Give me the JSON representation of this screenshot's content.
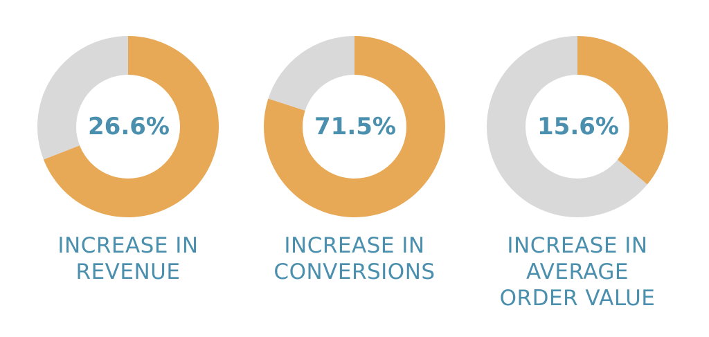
{
  "colors": {
    "accent": "#E8A957",
    "track": "#D9D9D9",
    "text": "#4A8FAE",
    "background": "#FFFFFF"
  },
  "chart_data": [
    {
      "type": "pie",
      "center_label": "26.6%",
      "values": [
        0.691,
        0.309
      ],
      "colors": [
        "#E8A957",
        "#D9D9D9"
      ],
      "caption_lines": [
        "INCREASE IN",
        "REVENUE"
      ]
    },
    {
      "type": "pie",
      "center_label": "71.5%",
      "values": [
        0.8,
        0.2
      ],
      "colors": [
        "#E8A957",
        "#D9D9D9"
      ],
      "caption_lines": [
        "INCREASE IN",
        "CONVERSIONS"
      ]
    },
    {
      "type": "pie",
      "center_label": "15.6%",
      "values": [
        0.36,
        0.64
      ],
      "colors": [
        "#E8A957",
        "#D9D9D9"
      ],
      "caption_lines": [
        "INCREASE IN",
        "AVERAGE",
        "ORDER VALUE"
      ]
    }
  ]
}
